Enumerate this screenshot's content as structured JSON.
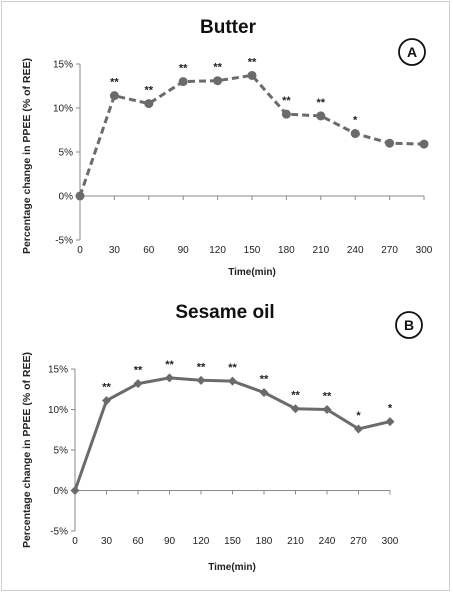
{
  "chart_data": [
    {
      "type": "line",
      "title": "Butter",
      "panel_label": "A",
      "xlabel": "Time(min)",
      "ylabel": "Percentage change in PPEE (% of REE)",
      "line_style": "dashed",
      "marker": "circle",
      "color": "#6b6b6b",
      "ylim": [
        -5,
        15
      ],
      "xlim": [
        0,
        300
      ],
      "xticks": [
        0,
        30,
        60,
        90,
        120,
        150,
        180,
        210,
        240,
        270,
        300
      ],
      "yticks": [
        -5,
        0,
        5,
        10,
        15
      ],
      "ytick_labels": [
        "-5%",
        "0%",
        "5%",
        "10%",
        "15%"
      ],
      "x": [
        0,
        30,
        60,
        90,
        120,
        150,
        180,
        210,
        240,
        270,
        300
      ],
      "values": [
        0,
        11.4,
        10.5,
        13.0,
        13.1,
        13.7,
        9.3,
        9.1,
        7.1,
        6.0,
        5.9
      ],
      "significance": [
        "",
        "**",
        "**",
        "**",
        "**",
        "**",
        "**",
        "**",
        "*",
        "",
        ""
      ]
    },
    {
      "type": "line",
      "title": "Sesame oil",
      "panel_label": "B",
      "xlabel": "Time(min)",
      "ylabel": "Percentage change in PPEE (% of REE)",
      "line_style": "solid",
      "marker": "diamond",
      "color": "#6b6b6b",
      "ylim": [
        -5,
        15
      ],
      "xlim": [
        0,
        300
      ],
      "xticks": [
        0,
        30,
        60,
        90,
        120,
        150,
        180,
        210,
        240,
        270,
        300
      ],
      "yticks": [
        -5,
        0,
        5,
        10,
        15
      ],
      "ytick_labels": [
        "-5%",
        "0%",
        "5%",
        "10%",
        "15%"
      ],
      "x": [
        0,
        30,
        60,
        90,
        120,
        150,
        180,
        210,
        240,
        270,
        300
      ],
      "values": [
        0,
        11.1,
        13.2,
        13.9,
        13.6,
        13.5,
        12.1,
        10.1,
        10.0,
        7.6,
        8.5
      ],
      "significance": [
        "",
        "**",
        "**",
        "**",
        "**",
        "**",
        "**",
        "**",
        "**",
        "*",
        "*"
      ]
    }
  ]
}
